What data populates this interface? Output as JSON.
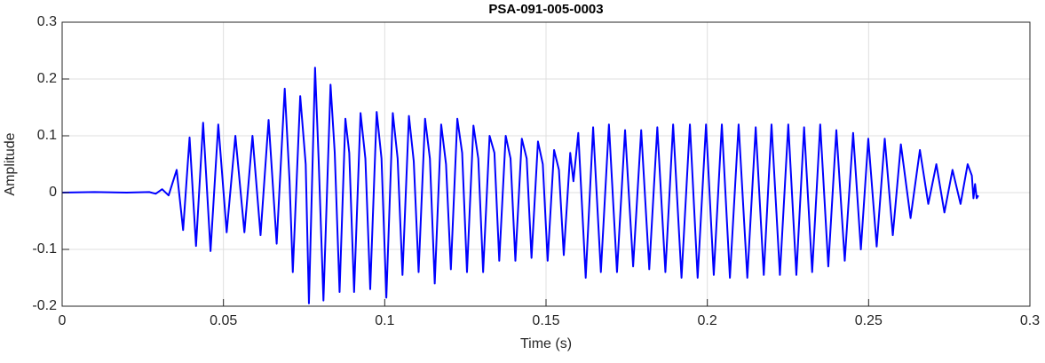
{
  "chart_data": {
    "type": "line",
    "title": "PSA-091-005-0003",
    "xlabel": "Time (s)",
    "ylabel": "Amplitude",
    "xlim": [
      0,
      0.3
    ],
    "xticks": [
      0,
      0.05,
      0.1,
      0.15,
      0.2,
      0.25,
      0.3
    ],
    "ylim": [
      -0.2,
      0.3
    ],
    "yticks": [
      -0.2,
      -0.1,
      0,
      0.1,
      0.2,
      0.3
    ],
    "grid": true,
    "series": [
      {
        "color": "#0000ff",
        "x": [
          0,
          0.01,
          0.02,
          0.027,
          0.029,
          0.031,
          0.033,
          0.0355,
          0.0375,
          0.0395,
          0.0415,
          0.0437,
          0.046,
          0.0484,
          0.051,
          0.0537,
          0.0565,
          0.059,
          0.0615,
          0.064,
          0.0665,
          0.069,
          0.0705,
          0.0715,
          0.0738,
          0.0755,
          0.0765,
          0.0784,
          0.0795,
          0.081,
          0.0832,
          0.0845,
          0.086,
          0.0878,
          0.089,
          0.0905,
          0.0925,
          0.094,
          0.0955,
          0.0975,
          0.099,
          0.1005,
          0.1025,
          0.104,
          0.1055,
          0.1075,
          0.109,
          0.1105,
          0.1125,
          0.114,
          0.1155,
          0.1175,
          0.119,
          0.1205,
          0.1225,
          0.124,
          0.1255,
          0.1275,
          0.129,
          0.1305,
          0.1325,
          0.134,
          0.1355,
          0.1375,
          0.139,
          0.1405,
          0.1425,
          0.144,
          0.1455,
          0.1475,
          0.149,
          0.1505,
          0.1525,
          0.154,
          0.1555,
          0.1575,
          0.1585,
          0.16,
          0.1623,
          0.1646,
          0.167,
          0.1695,
          0.172,
          0.1745,
          0.177,
          0.1795,
          0.182,
          0.1845,
          0.187,
          0.1894,
          0.192,
          0.1946,
          0.197,
          0.1996,
          0.202,
          0.2045,
          0.207,
          0.2097,
          0.2124,
          0.215,
          0.2175,
          0.2199,
          0.2225,
          0.2251,
          0.2276,
          0.23,
          0.2325,
          0.235,
          0.2375,
          0.24,
          0.2426,
          0.2452,
          0.2476,
          0.2499,
          0.2525,
          0.255,
          0.2575,
          0.26,
          0.263,
          0.2659,
          0.2685,
          0.271,
          0.2735,
          0.276,
          0.2785,
          0.2807,
          0.282,
          0.2825,
          0.283,
          0.2835,
          0.284
        ],
        "values": [
          0,
          0.001,
          0,
          0.001,
          -0.002,
          0.006,
          -0.005,
          0.04,
          -0.066,
          0.097,
          -0.094,
          0.123,
          -0.103,
          0.12,
          -0.07,
          0.1,
          -0.07,
          0.1,
          -0.075,
          0.128,
          -0.09,
          0.183,
          0.02,
          -0.14,
          0.17,
          0.05,
          -0.195,
          0.22,
          0.06,
          -0.19,
          0.19,
          0.07,
          -0.175,
          0.13,
          0.07,
          -0.175,
          0.14,
          0.06,
          -0.17,
          0.142,
          0.06,
          -0.185,
          0.14,
          0.06,
          -0.145,
          0.135,
          0.055,
          -0.14,
          0.13,
          0.06,
          -0.16,
          0.12,
          0.05,
          -0.135,
          0.13,
          0.07,
          -0.14,
          0.118,
          0.06,
          -0.14,
          0.1,
          0.07,
          -0.12,
          0.1,
          0.06,
          -0.12,
          0.095,
          0.06,
          -0.115,
          0.09,
          0.05,
          -0.12,
          0.075,
          0.04,
          -0.11,
          0.07,
          0.02,
          0.105,
          -0.15,
          0.115,
          -0.14,
          0.12,
          -0.14,
          0.11,
          -0.13,
          0.11,
          -0.135,
          0.115,
          -0.14,
          0.12,
          -0.15,
          0.12,
          -0.15,
          0.12,
          -0.145,
          0.12,
          -0.15,
          0.12,
          -0.15,
          0.115,
          -0.145,
          0.12,
          -0.145,
          0.12,
          -0.145,
          0.115,
          -0.14,
          0.12,
          -0.13,
          0.11,
          -0.12,
          0.105,
          -0.1,
          0.095,
          -0.095,
          0.095,
          -0.075,
          0.085,
          -0.045,
          0.075,
          -0.02,
          0.05,
          -0.035,
          0.04,
          -0.02,
          0.05,
          0.03,
          -0.01,
          0.015,
          -0.01,
          -0.005
        ]
      }
    ]
  }
}
